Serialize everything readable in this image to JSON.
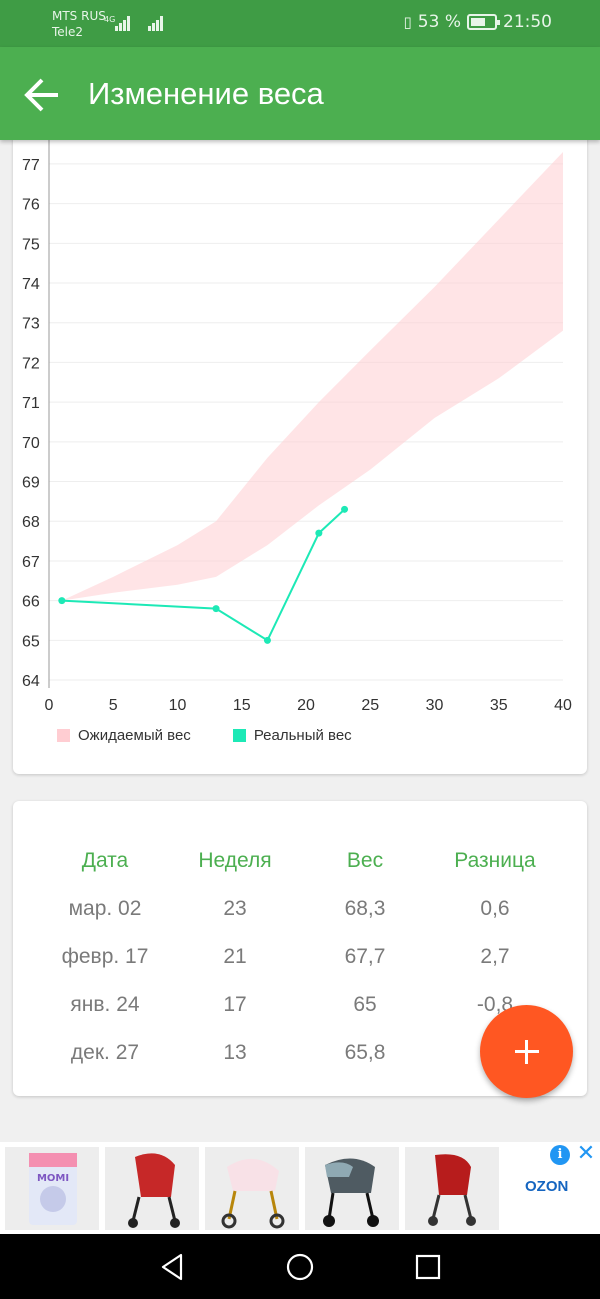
{
  "status_bar": {
    "carrier1": "MTS RUS",
    "carrier2": "Tele2",
    "network1": "4G",
    "battery_percent": "53 %",
    "time": "21:50"
  },
  "app_bar": {
    "title": "Изменение веса",
    "back_icon": "arrow-left-icon"
  },
  "chart_data": {
    "type": "area",
    "x_ticks": [
      "0",
      "5",
      "10",
      "15",
      "20",
      "25",
      "30",
      "35",
      "40"
    ],
    "y_ticks": [
      "64",
      "65",
      "66",
      "67",
      "68",
      "69",
      "70",
      "71",
      "72",
      "73",
      "74",
      "75",
      "76",
      "77"
    ],
    "xlim": [
      0,
      40
    ],
    "ylim": [
      63.8,
      77.3
    ],
    "expected": {
      "name": "Ожидаемый вес",
      "color": "#ffcdd2",
      "x": [
        1,
        5,
        10,
        13,
        17,
        21,
        25,
        30,
        35,
        40
      ],
      "upper": [
        66.0,
        66.6,
        67.4,
        68.0,
        69.6,
        71.0,
        72.3,
        73.9,
        75.6,
        77.3
      ],
      "lower": [
        66.0,
        66.2,
        66.4,
        66.6,
        67.4,
        68.4,
        69.3,
        70.6,
        71.6,
        72.8
      ]
    },
    "actual": {
      "name": "Реальный вес",
      "color": "#1de9b6",
      "x": [
        1,
        13,
        17,
        21,
        23
      ],
      "y": [
        66.0,
        65.8,
        65.0,
        67.7,
        68.3
      ]
    },
    "legend": [
      "Ожидаемый вес",
      "Реальный вес"
    ]
  },
  "table": {
    "headers": [
      "Дата",
      "Неделя",
      "Вес",
      "Разница"
    ],
    "rows": [
      [
        "мар. 02",
        "23",
        "68,3",
        "0,6"
      ],
      [
        "февр. 17",
        "21",
        "67,7",
        "2,7"
      ],
      [
        "янв. 24",
        "17",
        "65",
        "-0,8"
      ],
      [
        "дек. 27",
        "13",
        "65,8",
        ""
      ]
    ]
  },
  "fab": {
    "icon": "plus-icon",
    "color": "#ff5722"
  },
  "ad": {
    "brand": "OZON",
    "tile_logo": "MOMI",
    "info_icon": "info-icon",
    "close_icon": "close-icon",
    "items": [
      "diapers-icon",
      "stroller-red-icon",
      "stroller-pink-icon",
      "stroller-gray-icon",
      "stroller-red2-icon"
    ]
  },
  "nav_bar": {
    "icons": [
      "back-triangle-icon",
      "home-circle-icon",
      "recents-square-icon"
    ]
  },
  "colors": {
    "primary": "#4caf50",
    "status": "#3f9c45",
    "accent": "#ff5722"
  }
}
